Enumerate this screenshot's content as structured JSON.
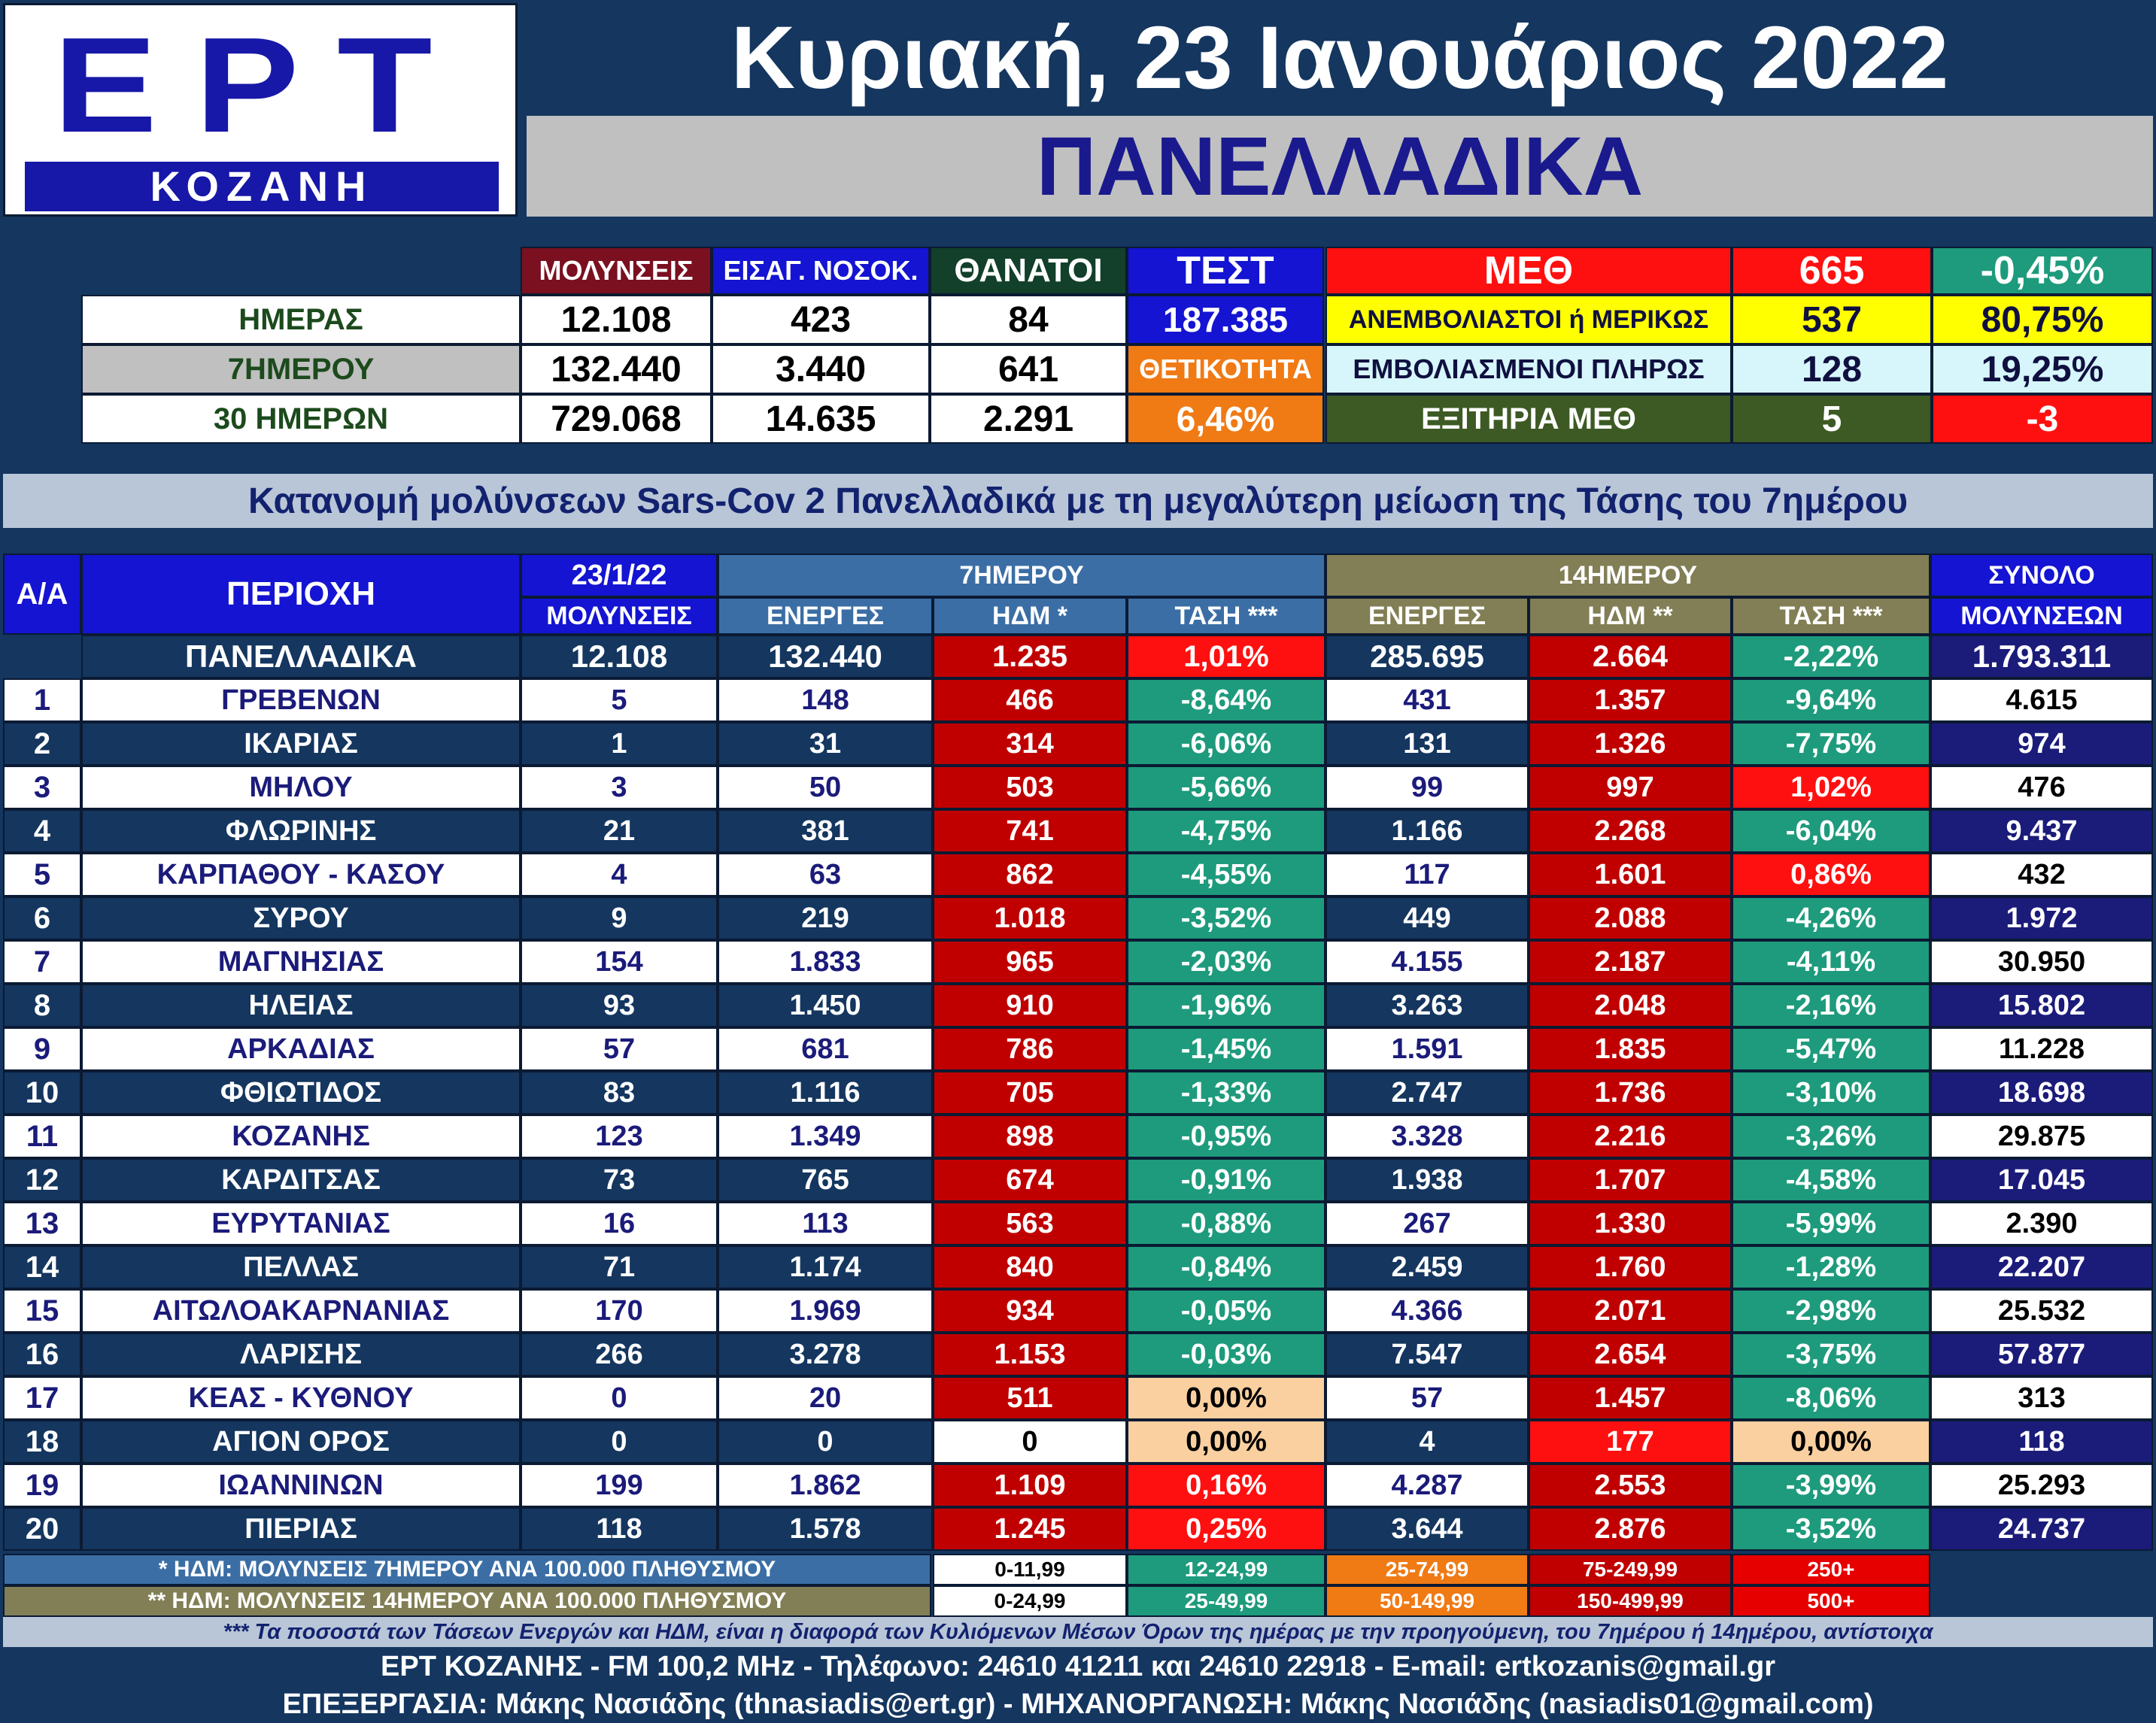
{
  "logo": {
    "brand": "ΕΡΤ",
    "station": "ΚΟΖΑΝΗ"
  },
  "header": {
    "date": "Κυριακή, 23 Ιανουάριος 2022",
    "title": "ΠΑΝΕΛΛΑΔΙΚΑ"
  },
  "summary": {
    "col_headers": {
      "infections": "ΜΟΛΥΝΣΕΙΣ",
      "hospital": "ΕΙΣΑΓ. ΝΟΣΟΚ.",
      "deaths": "ΘΑΝΑΤΟΙ",
      "tests": "ΤΕΣΤ"
    },
    "rows": [
      {
        "label": "ΗΜΕΡΑΣ",
        "infections": "12.108",
        "hospital": "423",
        "deaths": "84"
      },
      {
        "label": "7ΗΜΕΡΟΥ",
        "infections": "132.440",
        "hospital": "3.440",
        "deaths": "641"
      },
      {
        "label": "30 ΗΜΕΡΩΝ",
        "infections": "729.068",
        "hospital": "14.635",
        "deaths": "2.291"
      }
    ],
    "tests_value": "187.385",
    "positivity_label": "ΘΕΤΙΚΟΤΗΤΑ",
    "positivity_value": "6,46%",
    "icu": {
      "label": "ΜΕΘ",
      "total": "665",
      "change": "-0,45%",
      "unvaccinated_label": "ΑΝΕΜΒΟΛΙΑΣΤΟΙ ή ΜΕΡΙΚΩΣ",
      "unvaccinated_value": "537",
      "unvaccinated_pct": "80,75%",
      "vaccinated_label": "ΕΜΒΟΛΙΑΣΜΕΝΟΙ ΠΛΗΡΩΣ",
      "vaccinated_value": "128",
      "vaccinated_pct": "19,25%",
      "discharged_label": "ΕΞΙΤΗΡΙΑ ΜΕΘ",
      "discharged_value": "5",
      "discharged_change": "-3"
    }
  },
  "subtitle": "Κατανομή μολύνσεων Sars-Cov 2 Πανελλαδικά με τη μεγαλύτερη μείωση της Τάσης του 7ημέρου",
  "table": {
    "headers": {
      "aa": "Α/Α",
      "region": "ΠΕΡΙΟΧΗ",
      "date": "23/1/22",
      "infections": "ΜΟΛΥΝΣΕΙΣ",
      "group7": "7ΗΜΕΡΟΥ",
      "group14": "14ΗΜΕΡΟΥ",
      "active": "ΕΝΕΡΓΕΣ",
      "hdm7": "ΗΔΜ *",
      "trend7": "ΤΑΣΗ ***",
      "hdm14": "ΗΔΜ **",
      "trend14": "ΤΑΣΗ ***",
      "total_top": "ΣΥΝΟΛΟ",
      "total_bottom": "ΜΟΛΥΝΣΕΩΝ"
    },
    "national": {
      "region": "ΠΑΝΕΛΛΑΔΙΚΑ",
      "inf": "12.108",
      "a7": "132.440",
      "h7": "1.235",
      "t7": "1,01%",
      "a14": "285.695",
      "h14": "2.664",
      "t14": "-2,22%",
      "total": "1.793.311"
    },
    "rows": [
      {
        "aa": "1",
        "region": "ΓΡΕΒΕΝΩΝ",
        "inf": "5",
        "a7": "148",
        "h7": "466",
        "t7": "-8,64%",
        "a14": "431",
        "h14": "1.357",
        "t14": "-9,64%",
        "total": "4.615"
      },
      {
        "aa": "2",
        "region": "ΙΚΑΡΙΑΣ",
        "inf": "1",
        "a7": "31",
        "h7": "314",
        "t7": "-6,06%",
        "a14": "131",
        "h14": "1.326",
        "t14": "-7,75%",
        "total": "974"
      },
      {
        "aa": "3",
        "region": "ΜΗΛΟΥ",
        "inf": "3",
        "a7": "50",
        "h7": "503",
        "t7": "-5,66%",
        "a14": "99",
        "h14": "997",
        "t14": "1,02%",
        "total": "476"
      },
      {
        "aa": "4",
        "region": "ΦΛΩΡΙΝΗΣ",
        "inf": "21",
        "a7": "381",
        "h7": "741",
        "t7": "-4,75%",
        "a14": "1.166",
        "h14": "2.268",
        "t14": "-6,04%",
        "total": "9.437"
      },
      {
        "aa": "5",
        "region": "ΚΑΡΠΑΘΟΥ - ΚΑΣΟΥ",
        "inf": "4",
        "a7": "63",
        "h7": "862",
        "t7": "-4,55%",
        "a14": "117",
        "h14": "1.601",
        "t14": "0,86%",
        "total": "432"
      },
      {
        "aa": "6",
        "region": "ΣΥΡΟΥ",
        "inf": "9",
        "a7": "219",
        "h7": "1.018",
        "t7": "-3,52%",
        "a14": "449",
        "h14": "2.088",
        "t14": "-4,26%",
        "total": "1.972"
      },
      {
        "aa": "7",
        "region": "ΜΑΓΝΗΣΙΑΣ",
        "inf": "154",
        "a7": "1.833",
        "h7": "965",
        "t7": "-2,03%",
        "a14": "4.155",
        "h14": "2.187",
        "t14": "-4,11%",
        "total": "30.950"
      },
      {
        "aa": "8",
        "region": "ΗΛΕΙΑΣ",
        "inf": "93",
        "a7": "1.450",
        "h7": "910",
        "t7": "-1,96%",
        "a14": "3.263",
        "h14": "2.048",
        "t14": "-2,16%",
        "total": "15.802"
      },
      {
        "aa": "9",
        "region": "ΑΡΚΑΔΙΑΣ",
        "inf": "57",
        "a7": "681",
        "h7": "786",
        "t7": "-1,45%",
        "a14": "1.591",
        "h14": "1.835",
        "t14": "-5,47%",
        "total": "11.228"
      },
      {
        "aa": "10",
        "region": "ΦΘΙΩΤΙΔΟΣ",
        "inf": "83",
        "a7": "1.116",
        "h7": "705",
        "t7": "-1,33%",
        "a14": "2.747",
        "h14": "1.736",
        "t14": "-3,10%",
        "total": "18.698"
      },
      {
        "aa": "11",
        "region": "ΚΟΖΑΝΗΣ",
        "inf": "123",
        "a7": "1.349",
        "h7": "898",
        "t7": "-0,95%",
        "a14": "3.328",
        "h14": "2.216",
        "t14": "-3,26%",
        "total": "29.875"
      },
      {
        "aa": "12",
        "region": "ΚΑΡΔΙΤΣΑΣ",
        "inf": "73",
        "a7": "765",
        "h7": "674",
        "t7": "-0,91%",
        "a14": "1.938",
        "h14": "1.707",
        "t14": "-4,58%",
        "total": "17.045"
      },
      {
        "aa": "13",
        "region": "ΕΥΡΥΤΑΝΙΑΣ",
        "inf": "16",
        "a7": "113",
        "h7": "563",
        "t7": "-0,88%",
        "a14": "267",
        "h14": "1.330",
        "t14": "-5,99%",
        "total": "2.390"
      },
      {
        "aa": "14",
        "region": "ΠΕΛΛΑΣ",
        "inf": "71",
        "a7": "1.174",
        "h7": "840",
        "t7": "-0,84%",
        "a14": "2.459",
        "h14": "1.760",
        "t14": "-1,28%",
        "total": "22.207"
      },
      {
        "aa": "15",
        "region": "ΑΙΤΩΛΟΑΚΑΡΝΑΝΙΑΣ",
        "inf": "170",
        "a7": "1.969",
        "h7": "934",
        "t7": "-0,05%",
        "a14": "4.366",
        "h14": "2.071",
        "t14": "-2,98%",
        "total": "25.532"
      },
      {
        "aa": "16",
        "region": "ΛΑΡΙΣΗΣ",
        "inf": "266",
        "a7": "3.278",
        "h7": "1.153",
        "t7": "-0,03%",
        "a14": "7.547",
        "h14": "2.654",
        "t14": "-3,75%",
        "total": "57.877"
      },
      {
        "aa": "17",
        "region": "ΚΕΑΣ - ΚΥΘΝΟΥ",
        "inf": "0",
        "a7": "20",
        "h7": "511",
        "t7": "0,00%",
        "a14": "57",
        "h14": "1.457",
        "t14": "-8,06%",
        "total": "313"
      },
      {
        "aa": "18",
        "region": "ΑΓΙΟΝ ΟΡΟΣ",
        "inf": "0",
        "a7": "0",
        "h7": "0",
        "t7": "0,00%",
        "a14": "4",
        "h14": "177",
        "t14": "0,00%",
        "total": "118"
      },
      {
        "aa": "19",
        "region": "ΙΩΑΝΝΙΝΩΝ",
        "inf": "199",
        "a7": "1.862",
        "h7": "1.109",
        "t7": "0,16%",
        "a14": "4.287",
        "h14": "2.553",
        "t14": "-3,99%",
        "total": "25.293"
      },
      {
        "aa": "20",
        "region": "ΠΙΕΡΙΑΣ",
        "inf": "118",
        "a7": "1.578",
        "h7": "1.245",
        "t7": "0,25%",
        "a14": "3.644",
        "h14": "2.876",
        "t14": "-3,52%",
        "total": "24.737"
      }
    ]
  },
  "legend": {
    "note7": "* ΗΔΜ: ΜΟΛΥΝΣΕΙΣ 7ΗΜΕΡΟΥ ΑΝΑ 100.000 ΠΛΗΘΥΣΜΟΥ",
    "note14": "** ΗΔΜ: ΜΟΛΥΝΣΕΙΣ 14ΗΜΕΡΟΥ ΑΝΑ 100.000 ΠΛΗΘΥΣΜΟΥ",
    "ranges7": [
      "0-11,99",
      "12-24,99",
      "25-74,99",
      "75-249,99",
      "250+"
    ],
    "ranges14": [
      "0-24,99",
      "25-49,99",
      "50-149,99",
      "150-499,99",
      "500+"
    ],
    "range_colors": [
      "#ffffff",
      "#1e9b7c",
      "#f07a14",
      "#c00000",
      "#e60000"
    ]
  },
  "footer": {
    "note": "*** Τα ποσοστά των Τάσεων Ενεργών και ΗΔΜ, είναι η διαφορά των Κυλιόμενων Μέσων Όρων της ημέρας με την προηγούμενη, του 7ημέρου ή 14ημέρου, αντίστοιχα",
    "contact": "ΕΡΤ ΚΟΖΑΝΗΣ - FM 100,2 MHz - Τηλέφωνο:  24610 41211 και 24610 22918 - E-mail: ertkozanis@gmail.gr",
    "credits": "ΕΠΕΞΕΡΓΑΣΙΑ: Μάκης Νασιάδης (thnasiadis@ert.gr) - ΜΗΧΑΝΟΡΓΑΝΩΣΗ: Μάκης Νασιάδης (nasiadis01@gmail.com)"
  },
  "colors": {
    "navy": "#14365f",
    "blue_header": "#1414d2",
    "deep_red": "#c00000",
    "bright_red": "#ff1010",
    "teal": "#1e9b7c",
    "peach": "#fad0a0",
    "olive": "#827e55",
    "steel": "#3b6ea5",
    "dark_indigo": "#1b1b7a"
  }
}
